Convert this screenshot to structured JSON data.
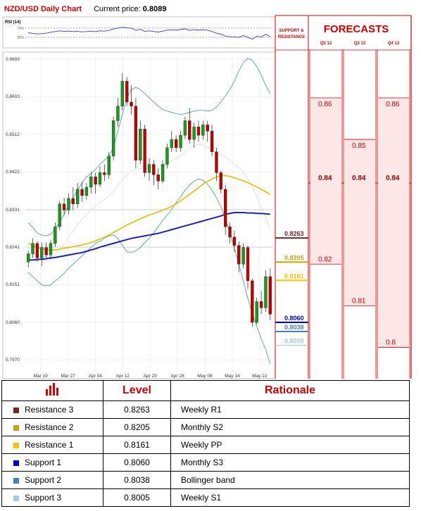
{
  "header": {
    "title": "NZD/USD Daily Chart",
    "price_label": "Current price:",
    "price_value": "0.8089"
  },
  "colors": {
    "resistance3": "#7b2424",
    "resistance2": "#c9a10a",
    "resistance1": "#ffc000",
    "support1": "#0000cc",
    "support2": "#4a7ebb",
    "support3": "#a9c6e2",
    "red": "#d00000",
    "grid": "#e6e6e6"
  },
  "forecast_panel": {
    "sr_title_1": "SUPPORT &",
    "sr_title_2": "RESISTANCE",
    "title": "FORECASTS",
    "quarters": [
      "Q2 13",
      "Q3 13",
      "Q4 13"
    ]
  },
  "chart_data": [
    {
      "type": "candlestick",
      "title": "NZD/USD Daily Chart",
      "ylim": [
        0.7955,
        0.8705
      ],
      "y_ticks": [
        "0.8693",
        "0.8603",
        "0.8512",
        "0.8422",
        "0.8331",
        "0.8241",
        "0.8151",
        "0.8060",
        "0.7970"
      ],
      "x_tick_labels": [
        "Mar 19",
        "Mar 27",
        "Apr 04",
        "Apr 12",
        "Apr 20",
        "Apr 28",
        "May 06",
        "May 14",
        "May 22"
      ],
      "candles": [
        {
          "o": 0.8205,
          "h": 0.8232,
          "l": 0.8192,
          "c": 0.8225
        },
        {
          "o": 0.8225,
          "h": 0.8262,
          "l": 0.8215,
          "c": 0.825
        },
        {
          "o": 0.825,
          "h": 0.8255,
          "l": 0.8205,
          "c": 0.8215
        },
        {
          "o": 0.8215,
          "h": 0.8252,
          "l": 0.8195,
          "c": 0.824
        },
        {
          "o": 0.824,
          "h": 0.8252,
          "l": 0.8215,
          "c": 0.8222
        },
        {
          "o": 0.8222,
          "h": 0.8258,
          "l": 0.8212,
          "c": 0.825
        },
        {
          "o": 0.825,
          "h": 0.83,
          "l": 0.8242,
          "c": 0.829
        },
        {
          "o": 0.829,
          "h": 0.8352,
          "l": 0.8282,
          "c": 0.8345
        },
        {
          "o": 0.8345,
          "h": 0.836,
          "l": 0.8318,
          "c": 0.833
        },
        {
          "o": 0.833,
          "h": 0.837,
          "l": 0.832,
          "c": 0.8358
        },
        {
          "o": 0.8358,
          "h": 0.8385,
          "l": 0.833,
          "c": 0.8345
        },
        {
          "o": 0.8345,
          "h": 0.8395,
          "l": 0.8335,
          "c": 0.838
        },
        {
          "o": 0.838,
          "h": 0.8398,
          "l": 0.835,
          "c": 0.8365
        },
        {
          "o": 0.8365,
          "h": 0.8395,
          "l": 0.8355,
          "c": 0.8385
        },
        {
          "o": 0.8385,
          "h": 0.8422,
          "l": 0.837,
          "c": 0.841
        },
        {
          "o": 0.841,
          "h": 0.842,
          "l": 0.837,
          "c": 0.8392
        },
        {
          "o": 0.8392,
          "h": 0.8435,
          "l": 0.8385,
          "c": 0.842
        },
        {
          "o": 0.842,
          "h": 0.844,
          "l": 0.84,
          "c": 0.8415
        },
        {
          "o": 0.8415,
          "h": 0.847,
          "l": 0.8405,
          "c": 0.846
        },
        {
          "o": 0.846,
          "h": 0.8555,
          "l": 0.845,
          "c": 0.8545
        },
        {
          "o": 0.8545,
          "h": 0.86,
          "l": 0.853,
          "c": 0.858
        },
        {
          "o": 0.858,
          "h": 0.866,
          "l": 0.857,
          "c": 0.864
        },
        {
          "o": 0.864,
          "h": 0.865,
          "l": 0.858,
          "c": 0.859
        },
        {
          "o": 0.859,
          "h": 0.863,
          "l": 0.856,
          "c": 0.858
        },
        {
          "o": 0.858,
          "h": 0.86,
          "l": 0.843,
          "c": 0.845
        },
        {
          "o": 0.845,
          "h": 0.8545,
          "l": 0.844,
          "c": 0.8525
        },
        {
          "o": 0.8525,
          "h": 0.8535,
          "l": 0.841,
          "c": 0.842
        },
        {
          "o": 0.842,
          "h": 0.8455,
          "l": 0.84,
          "c": 0.844
        },
        {
          "o": 0.844,
          "h": 0.845,
          "l": 0.839,
          "c": 0.8415
        },
        {
          "o": 0.8415,
          "h": 0.843,
          "l": 0.838,
          "c": 0.84
        },
        {
          "o": 0.84,
          "h": 0.845,
          "l": 0.8395,
          "c": 0.844
        },
        {
          "o": 0.844,
          "h": 0.849,
          "l": 0.843,
          "c": 0.848
        },
        {
          "o": 0.848,
          "h": 0.852,
          "l": 0.847,
          "c": 0.85
        },
        {
          "o": 0.85,
          "h": 0.851,
          "l": 0.847,
          "c": 0.848
        },
        {
          "o": 0.848,
          "h": 0.852,
          "l": 0.847,
          "c": 0.851
        },
        {
          "o": 0.851,
          "h": 0.8555,
          "l": 0.85,
          "c": 0.8545
        },
        {
          "o": 0.8545,
          "h": 0.8575,
          "l": 0.849,
          "c": 0.85
        },
        {
          "o": 0.85,
          "h": 0.854,
          "l": 0.848,
          "c": 0.853
        },
        {
          "o": 0.853,
          "h": 0.8545,
          "l": 0.8495,
          "c": 0.851
        },
        {
          "o": 0.851,
          "h": 0.8545,
          "l": 0.85,
          "c": 0.8535
        },
        {
          "o": 0.8535,
          "h": 0.8545,
          "l": 0.8495,
          "c": 0.852
        },
        {
          "o": 0.852,
          "h": 0.8535,
          "l": 0.846,
          "c": 0.847
        },
        {
          "o": 0.847,
          "h": 0.848,
          "l": 0.84,
          "c": 0.842
        },
        {
          "o": 0.842,
          "h": 0.8425,
          "l": 0.837,
          "c": 0.838
        },
        {
          "o": 0.838,
          "h": 0.839,
          "l": 0.827,
          "c": 0.829
        },
        {
          "o": 0.829,
          "h": 0.83,
          "l": 0.825,
          "c": 0.8265
        },
        {
          "o": 0.8265,
          "h": 0.828,
          "l": 0.823,
          "c": 0.8245
        },
        {
          "o": 0.8245,
          "h": 0.8255,
          "l": 0.818,
          "c": 0.82
        },
        {
          "o": 0.82,
          "h": 0.825,
          "l": 0.819,
          "c": 0.824
        },
        {
          "o": 0.824,
          "h": 0.8245,
          "l": 0.814,
          "c": 0.816
        },
        {
          "o": 0.816,
          "h": 0.8165,
          "l": 0.805,
          "c": 0.806
        },
        {
          "o": 0.806,
          "h": 0.812,
          "l": 0.8055,
          "c": 0.811
        },
        {
          "o": 0.811,
          "h": 0.8135,
          "l": 0.808,
          "c": 0.8095
        },
        {
          "o": 0.8095,
          "h": 0.8185,
          "l": 0.8085,
          "c": 0.817
        },
        {
          "o": 0.817,
          "h": 0.819,
          "l": 0.8065,
          "c": 0.808
        }
      ],
      "ma_yellow": [
        0.825,
        0.8245,
        0.824,
        0.8237,
        0.8235,
        0.8234,
        0.8234,
        0.8236,
        0.8238,
        0.824,
        0.8242,
        0.8244,
        0.8246,
        0.8249,
        0.8252,
        0.8256,
        0.826,
        0.8265,
        0.827,
        0.8276,
        0.8282,
        0.8288,
        0.8294,
        0.8299,
        0.8304,
        0.8309,
        0.8314,
        0.8318,
        0.8322,
        0.8326,
        0.833,
        0.8334,
        0.8339,
        0.8345,
        0.8352,
        0.836,
        0.8368,
        0.8376,
        0.8384,
        0.8392,
        0.8399,
        0.8405,
        0.841,
        0.8413,
        0.8413,
        0.8411,
        0.8408,
        0.8404,
        0.84,
        0.8396,
        0.8391,
        0.8386,
        0.838,
        0.8374,
        0.8368
      ],
      "ma_blue": [
        0.821,
        0.821,
        0.8211,
        0.8212,
        0.8213,
        0.8215,
        0.8216,
        0.8218,
        0.822,
        0.8222,
        0.8224,
        0.8226,
        0.8228,
        0.8231,
        0.8234,
        0.8237,
        0.8241,
        0.8244,
        0.8247,
        0.825,
        0.8253,
        0.8256,
        0.8259,
        0.8262,
        0.8264,
        0.8266,
        0.8268,
        0.827,
        0.8272,
        0.8274,
        0.8277,
        0.828,
        0.8283,
        0.8286,
        0.8289,
        0.8292,
        0.8295,
        0.8298,
        0.8301,
        0.8304,
        0.8307,
        0.831,
        0.8313,
        0.8316,
        0.832,
        0.8322,
        0.8324,
        0.8324,
        0.8324,
        0.8323,
        0.8323,
        0.8322,
        0.8322,
        0.8321,
        0.832
      ],
      "bb_upper": [
        0.83,
        0.8288,
        0.8275,
        0.827,
        0.8268,
        0.8272,
        0.8285,
        0.83,
        0.832,
        0.834,
        0.836,
        0.8378,
        0.8395,
        0.841,
        0.8418,
        0.8428,
        0.844,
        0.845,
        0.846,
        0.848,
        0.852,
        0.856,
        0.86,
        0.862,
        0.8625,
        0.862,
        0.861,
        0.86,
        0.859,
        0.858,
        0.8572,
        0.8568,
        0.8565,
        0.8562,
        0.856,
        0.8562,
        0.8565,
        0.8568,
        0.857,
        0.857,
        0.8568,
        0.857,
        0.8578,
        0.859,
        0.8605,
        0.862,
        0.864,
        0.8665,
        0.8685,
        0.8695,
        0.869,
        0.8675,
        0.8655,
        0.863,
        0.861
      ],
      "bb_lower": [
        0.818,
        0.817,
        0.816,
        0.815,
        0.8148,
        0.815,
        0.816,
        0.8168,
        0.8178,
        0.819,
        0.82,
        0.821,
        0.822,
        0.823,
        0.824,
        0.825,
        0.8255,
        0.8262,
        0.8268,
        0.827,
        0.8262,
        0.8245,
        0.823,
        0.8228,
        0.8232,
        0.824,
        0.8252,
        0.8262,
        0.8275,
        0.829,
        0.8305,
        0.8318,
        0.8332,
        0.8348,
        0.8362,
        0.8378,
        0.839,
        0.84,
        0.8405,
        0.8402,
        0.8392,
        0.8378,
        0.836,
        0.8338,
        0.831,
        0.8275,
        0.8238,
        0.82,
        0.816,
        0.8118,
        0.8082,
        0.805,
        0.802,
        0.7995,
        0.796
      ],
      "bb_mid": [
        0.824,
        0.8229,
        0.8218,
        0.821,
        0.8208,
        0.8211,
        0.8222,
        0.8234,
        0.8249,
        0.8265,
        0.828,
        0.8294,
        0.8307,
        0.832,
        0.8329,
        0.8339,
        0.8348,
        0.8356,
        0.8364,
        0.8375,
        0.8391,
        0.8402,
        0.8415,
        0.8424,
        0.8428,
        0.843,
        0.8431,
        0.8431,
        0.8432,
        0.8435,
        0.8438,
        0.8443,
        0.8448,
        0.8455,
        0.8461,
        0.847,
        0.8478,
        0.8484,
        0.8488,
        0.8486,
        0.848,
        0.8474,
        0.8469,
        0.8464,
        0.8458,
        0.8448,
        0.8439,
        0.8432,
        0.8422,
        0.8406,
        0.8386,
        0.8362,
        0.8338,
        0.8312,
        0.8285
      ]
    },
    {
      "type": "line",
      "title": "RSI (14)",
      "ylim": [
        0,
        100
      ],
      "y_ticks": [
        "70%",
        "30%"
      ],
      "values": [
        50,
        47,
        45,
        46,
        48,
        52,
        55,
        58,
        56,
        57,
        55,
        56,
        54,
        55,
        57,
        55,
        58,
        57,
        60,
        66,
        70,
        74,
        71,
        70,
        60,
        65,
        56,
        58,
        55,
        53,
        57,
        61,
        63,
        61,
        64,
        67,
        60,
        63,
        61,
        63,
        61,
        55,
        48,
        44,
        35,
        33,
        32,
        30,
        38,
        30,
        22,
        35,
        32,
        43,
        33
      ]
    },
    {
      "type": "table",
      "title": "FORECASTS",
      "columns": [
        "Q2 13",
        "Q3 13",
        "Q4 13"
      ],
      "consensus_level": "0.84",
      "values": {
        "Q2 13": [
          "0.86",
          "0.84",
          "0.82"
        ],
        "Q3 13": [
          "0.85",
          "0.84",
          "0.81"
        ],
        "Q4 13": [
          "0.86",
          "0.84",
          "0.8"
        ]
      }
    }
  ],
  "levels_table": {
    "headers": {
      "level": "Level",
      "rationale": "Rationale"
    },
    "rows": [
      {
        "name": "Resistance 3",
        "level": "0.8263",
        "rationale": "Weekly R1",
        "color": "#7b2424"
      },
      {
        "name": "Resistance 2",
        "level": "0.8205",
        "rationale": "Monthly S2",
        "color": "#c9a10a"
      },
      {
        "name": "Resistance 1",
        "level": "0.8161",
        "rationale": "Weekly PP",
        "color": "#ffc000"
      },
      {
        "name": "Support 1",
        "level": "0.8060",
        "rationale": "Monthly S3",
        "color": "#0000cc"
      },
      {
        "name": "Support 2",
        "level": "0.8038",
        "rationale": "Bollinger band",
        "color": "#4a7ebb"
      },
      {
        "name": "Support 3",
        "level": "0.8005",
        "rationale": "Weekly S1",
        "color": "#a9c6e2"
      }
    ]
  }
}
